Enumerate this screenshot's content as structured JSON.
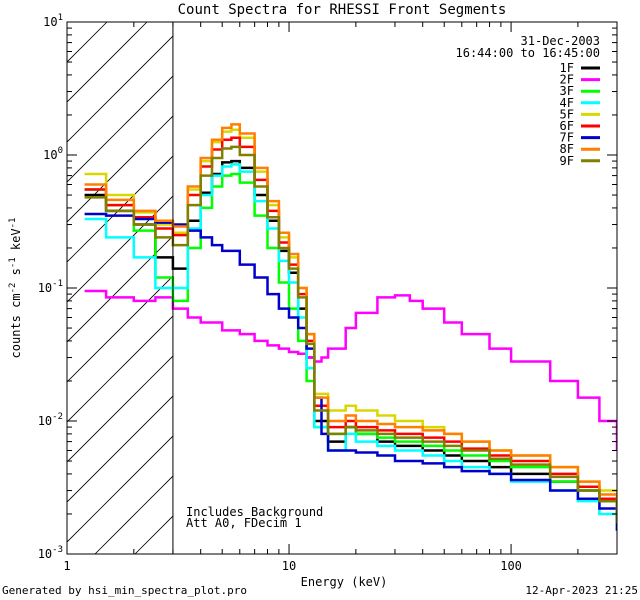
{
  "chart_data": {
    "type": "line",
    "title": "Count Spectra for RHESSI Front Segments",
    "xlabel": "Energy (keV)",
    "ylabel": "counts cm^-2 s^-1 keV^-1",
    "ylabel_parts": {
      "base": "counts cm",
      "exp1": "-2",
      "mid": " s",
      "exp2": "-1",
      "tail": " keV",
      "exp3": "-1"
    },
    "xscale": "log",
    "yscale": "log",
    "xlim": [
      1,
      300
    ],
    "ylim": [
      0.001,
      10
    ],
    "x_ticks": [
      {
        "value": 1,
        "label": "1"
      },
      {
        "value": 10,
        "label": "10"
      },
      {
        "value": 100,
        "label": "100"
      }
    ],
    "y_ticks": [
      {
        "value": 0.001,
        "base": "10",
        "exp": "-3"
      },
      {
        "value": 0.01,
        "base": "10",
        "exp": "-2"
      },
      {
        "value": 0.1,
        "base": "10",
        "exp": "-1"
      },
      {
        "value": 1,
        "base": "10",
        "exp": "0"
      },
      {
        "value": 10,
        "base": "10",
        "exp": "1"
      }
    ],
    "hatched_region_kev": [
      1,
      3
    ],
    "date": "31-Dec-2003",
    "time_range": "16:44:00 to 16:45:00",
    "annotations": [
      "Includes Background",
      "Att A0, FDecim 1"
    ],
    "legend_position": "top-right",
    "series": [
      {
        "name": "1F",
        "color": "#000000",
        "x": [
          1.2,
          1.5,
          2,
          2.5,
          3,
          3.5,
          4,
          4.5,
          5,
          5.5,
          6,
          7,
          8,
          9,
          10,
          11,
          12,
          13,
          15,
          18,
          20,
          25,
          30,
          40,
          50,
          60,
          80,
          100,
          150,
          200,
          250,
          300
        ],
        "y": [
          0.5,
          0.38,
          0.3,
          0.17,
          0.14,
          0.32,
          0.52,
          0.72,
          0.88,
          0.9,
          0.8,
          0.5,
          0.32,
          0.19,
          0.13,
          0.07,
          0.03,
          0.01,
          0.007,
          0.009,
          0.008,
          0.007,
          0.0065,
          0.006,
          0.0055,
          0.005,
          0.0045,
          0.004,
          0.0035,
          0.003,
          0.0025,
          0.0015
        ]
      },
      {
        "name": "2F",
        "color": "#ff00ff",
        "x": [
          1.2,
          1.5,
          2,
          2.5,
          3,
          3.5,
          4,
          5,
          6,
          7,
          8,
          9,
          10,
          11,
          12,
          13,
          14,
          15,
          18,
          20,
          25,
          30,
          35,
          40,
          50,
          60,
          80,
          100,
          150,
          200,
          250,
          300
        ],
        "y": [
          0.095,
          0.085,
          0.08,
          0.085,
          0.07,
          0.06,
          0.055,
          0.048,
          0.045,
          0.04,
          0.037,
          0.035,
          0.033,
          0.032,
          0.03,
          0.028,
          0.03,
          0.035,
          0.05,
          0.065,
          0.085,
          0.088,
          0.08,
          0.07,
          0.055,
          0.045,
          0.035,
          0.028,
          0.02,
          0.015,
          0.01,
          0.006
        ]
      },
      {
        "name": "3F",
        "color": "#00ff00",
        "x": [
          1.2,
          1.5,
          2,
          2.5,
          3,
          3.5,
          4,
          4.5,
          5,
          5.5,
          6,
          7,
          8,
          9,
          10,
          11,
          12,
          13,
          15,
          18,
          20,
          25,
          30,
          40,
          50,
          60,
          80,
          100,
          150,
          200,
          250,
          300
        ],
        "y": [
          0.55,
          0.42,
          0.27,
          0.12,
          0.08,
          0.2,
          0.4,
          0.58,
          0.7,
          0.72,
          0.62,
          0.35,
          0.2,
          0.11,
          0.07,
          0.04,
          0.02,
          0.009,
          0.008,
          0.009,
          0.008,
          0.0075,
          0.007,
          0.0065,
          0.006,
          0.0055,
          0.005,
          0.0045,
          0.0035,
          0.003,
          0.0025,
          0.0015
        ]
      },
      {
        "name": "4F",
        "color": "#00ffff",
        "x": [
          1.2,
          1.5,
          2,
          2.5,
          3,
          3.5,
          4,
          4.5,
          5,
          5.5,
          6,
          7,
          8,
          9,
          10,
          11,
          12,
          13,
          15,
          18,
          20,
          25,
          30,
          40,
          50,
          60,
          80,
          100,
          150,
          200,
          250,
          300
        ],
        "y": [
          0.33,
          0.24,
          0.17,
          0.1,
          0.1,
          0.28,
          0.5,
          0.7,
          0.82,
          0.85,
          0.75,
          0.45,
          0.28,
          0.16,
          0.11,
          0.06,
          0.025,
          0.009,
          0.006,
          0.008,
          0.007,
          0.0065,
          0.006,
          0.0055,
          0.005,
          0.0045,
          0.004,
          0.0035,
          0.003,
          0.0025,
          0.002,
          0.0015
        ]
      },
      {
        "name": "5F",
        "color": "#d8d800",
        "x": [
          1.2,
          1.5,
          2,
          2.5,
          3,
          3.5,
          4,
          4.5,
          5,
          5.5,
          6,
          7,
          8,
          9,
          10,
          11,
          12,
          13,
          15,
          18,
          20,
          25,
          30,
          40,
          50,
          60,
          80,
          100,
          150,
          200,
          250,
          300
        ],
        "y": [
          0.72,
          0.5,
          0.37,
          0.3,
          0.26,
          0.55,
          0.9,
          1.25,
          1.5,
          1.55,
          1.35,
          0.75,
          0.42,
          0.24,
          0.17,
          0.1,
          0.045,
          0.016,
          0.012,
          0.013,
          0.012,
          0.011,
          0.01,
          0.009,
          0.008,
          0.007,
          0.006,
          0.0055,
          0.0045,
          0.0035,
          0.003,
          0.002
        ]
      },
      {
        "name": "6F",
        "color": "#ff0000",
        "x": [
          1.2,
          1.5,
          2,
          2.5,
          3,
          3.5,
          4,
          4.5,
          5,
          5.5,
          6,
          7,
          8,
          9,
          10,
          11,
          12,
          13,
          15,
          18,
          20,
          25,
          30,
          40,
          50,
          60,
          80,
          100,
          150,
          200,
          250,
          300
        ],
        "y": [
          0.55,
          0.42,
          0.34,
          0.28,
          0.25,
          0.5,
          0.82,
          1.1,
          1.3,
          1.35,
          1.15,
          0.65,
          0.38,
          0.22,
          0.15,
          0.09,
          0.04,
          0.013,
          0.009,
          0.01,
          0.009,
          0.0085,
          0.008,
          0.0075,
          0.007,
          0.0062,
          0.0055,
          0.005,
          0.004,
          0.0032,
          0.0026,
          0.0018
        ]
      },
      {
        "name": "7F",
        "color": "#0000cc",
        "x": [
          1.2,
          1.5,
          2,
          2.5,
          3,
          3.5,
          4,
          4.5,
          5,
          6,
          7,
          8,
          9,
          10,
          11,
          12,
          13,
          14,
          15,
          18,
          20,
          25,
          30,
          40,
          50,
          60,
          80,
          100,
          150,
          200,
          250,
          300
        ],
        "y": [
          0.36,
          0.35,
          0.33,
          0.31,
          0.3,
          0.27,
          0.24,
          0.21,
          0.19,
          0.15,
          0.12,
          0.09,
          0.07,
          0.06,
          0.05,
          0.035,
          0.015,
          0.008,
          0.006,
          0.006,
          0.0058,
          0.0055,
          0.005,
          0.0048,
          0.0045,
          0.0042,
          0.004,
          0.0036,
          0.003,
          0.0026,
          0.0022,
          0.0015
        ]
      },
      {
        "name": "8F",
        "color": "#ff7f00",
        "x": [
          1.2,
          1.5,
          2,
          2.5,
          3,
          3.5,
          4,
          4.5,
          5,
          5.5,
          6,
          7,
          8,
          9,
          10,
          11,
          12,
          13,
          15,
          18,
          20,
          25,
          30,
          40,
          50,
          60,
          80,
          100,
          150,
          200,
          250,
          300
        ],
        "y": [
          0.6,
          0.46,
          0.38,
          0.32,
          0.29,
          0.58,
          0.95,
          1.3,
          1.6,
          1.7,
          1.45,
          0.8,
          0.45,
          0.26,
          0.18,
          0.1,
          0.045,
          0.015,
          0.01,
          0.011,
          0.01,
          0.0095,
          0.009,
          0.0085,
          0.008,
          0.007,
          0.006,
          0.0055,
          0.0045,
          0.0035,
          0.0028,
          0.002
        ]
      },
      {
        "name": "9F",
        "color": "#808000",
        "x": [
          1.2,
          1.5,
          2,
          2.5,
          3,
          3.5,
          4,
          4.5,
          5,
          5.5,
          6,
          7,
          8,
          9,
          10,
          11,
          12,
          13,
          15,
          18,
          20,
          25,
          30,
          40,
          50,
          60,
          80,
          100,
          150,
          200,
          250,
          300
        ],
        "y": [
          0.48,
          0.38,
          0.3,
          0.24,
          0.21,
          0.42,
          0.7,
          0.95,
          1.12,
          1.15,
          1.0,
          0.58,
          0.34,
          0.2,
          0.14,
          0.085,
          0.038,
          0.012,
          0.008,
          0.009,
          0.0085,
          0.008,
          0.0075,
          0.007,
          0.0065,
          0.006,
          0.0052,
          0.0047,
          0.0038,
          0.003,
          0.0025,
          0.0017
        ]
      }
    ]
  },
  "footer": {
    "generated_by": "Generated by hsi_min_spectra_plot.pro",
    "timestamp": "12-Apr-2023 21:25"
  }
}
